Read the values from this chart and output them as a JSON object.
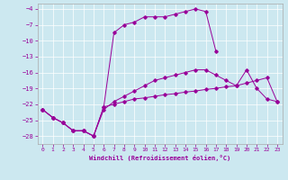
{
  "xlabel": "Windchill (Refroidissement éolien,°C)",
  "background_color": "#cce8f0",
  "line_color": "#990099",
  "xlim": [
    -0.5,
    23.5
  ],
  "ylim": [
    -29.5,
    -3.0
  ],
  "yticks": [
    -28,
    -25,
    -22,
    -19,
    -16,
    -13,
    -10,
    -7,
    -4
  ],
  "xticks": [
    0,
    1,
    2,
    3,
    4,
    5,
    6,
    7,
    8,
    9,
    10,
    11,
    12,
    13,
    14,
    15,
    16,
    17,
    18,
    19,
    20,
    21,
    22,
    23
  ],
  "series": [
    {
      "x": [
        0,
        1,
        2,
        3,
        4,
        5,
        6,
        7,
        8,
        9,
        10,
        11,
        12,
        13,
        14,
        15,
        16,
        17
      ],
      "y": [
        -23,
        -24.5,
        -25.5,
        -27,
        -27,
        -28,
        -22.5,
        -8.5,
        -7.0,
        -6.5,
        -5.5,
        -5.5,
        -5.5,
        -5.0,
        -4.5,
        -4.0,
        -4.5,
        -12.0
      ]
    },
    {
      "x": [
        0,
        1,
        2,
        3,
        4,
        5,
        6,
        7,
        8,
        9,
        10,
        11,
        12,
        13,
        14,
        15,
        16,
        17,
        18,
        19,
        20,
        21,
        22,
        23
      ],
      "y": [
        -23,
        -24.5,
        -25.5,
        -27,
        -27,
        -28,
        -23.0,
        -21.5,
        -20.5,
        -19.5,
        -18.5,
        -17.5,
        -17.0,
        -16.5,
        -16.0,
        -15.5,
        -15.5,
        -16.5,
        -17.5,
        -18.5,
        -15.5,
        -19.0,
        -21.0,
        -21.5
      ]
    },
    {
      "x": [
        0,
        1,
        2,
        3,
        4,
        5,
        6,
        7,
        8,
        9,
        10,
        11,
        12,
        13,
        14,
        15,
        16,
        17,
        18,
        19,
        20,
        21,
        22,
        23
      ],
      "y": [
        -23,
        -24.5,
        -25.5,
        -27,
        -27,
        -28,
        -22.5,
        -22.0,
        -21.5,
        -21.0,
        -20.8,
        -20.5,
        -20.2,
        -20.0,
        -19.7,
        -19.5,
        -19.2,
        -19.0,
        -18.7,
        -18.5,
        -18.0,
        -17.5,
        -17.0,
        -21.5
      ]
    }
  ]
}
